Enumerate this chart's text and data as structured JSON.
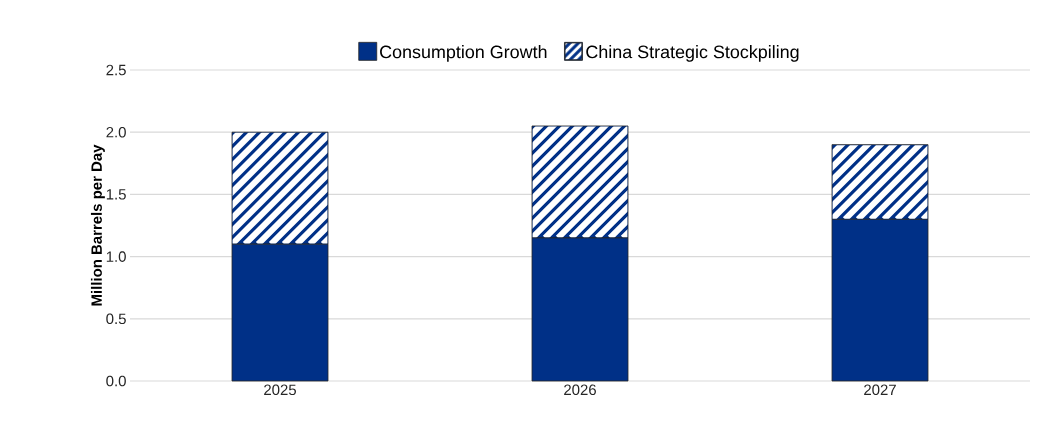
{
  "chart_data": {
    "type": "bar",
    "stacked": true,
    "categories": [
      "2025",
      "2026",
      "2027"
    ],
    "series": [
      {
        "name": "Consumption Growth",
        "color": "#003087",
        "values": [
          1.1,
          1.15,
          1.3
        ]
      },
      {
        "name": "China Strategic Stockpiling",
        "color": "#003087",
        "values": [
          0.9,
          0.9,
          0.6
        ]
      }
    ],
    "ylabel": "Million Barrels per Day",
    "ylim": [
      0,
      2.5
    ],
    "yticks": [
      {
        "value": 0,
        "label": "0.0"
      },
      {
        "value": 0.5,
        "label": "0.5"
      },
      {
        "value": 1,
        "label": "1.0"
      },
      {
        "value": 1.5,
        "label": "1.5"
      },
      {
        "value": 2,
        "label": "2.0"
      },
      {
        "value": 2.5,
        "label": "2.5"
      }
    ],
    "grid": "y",
    "legend": "top"
  }
}
